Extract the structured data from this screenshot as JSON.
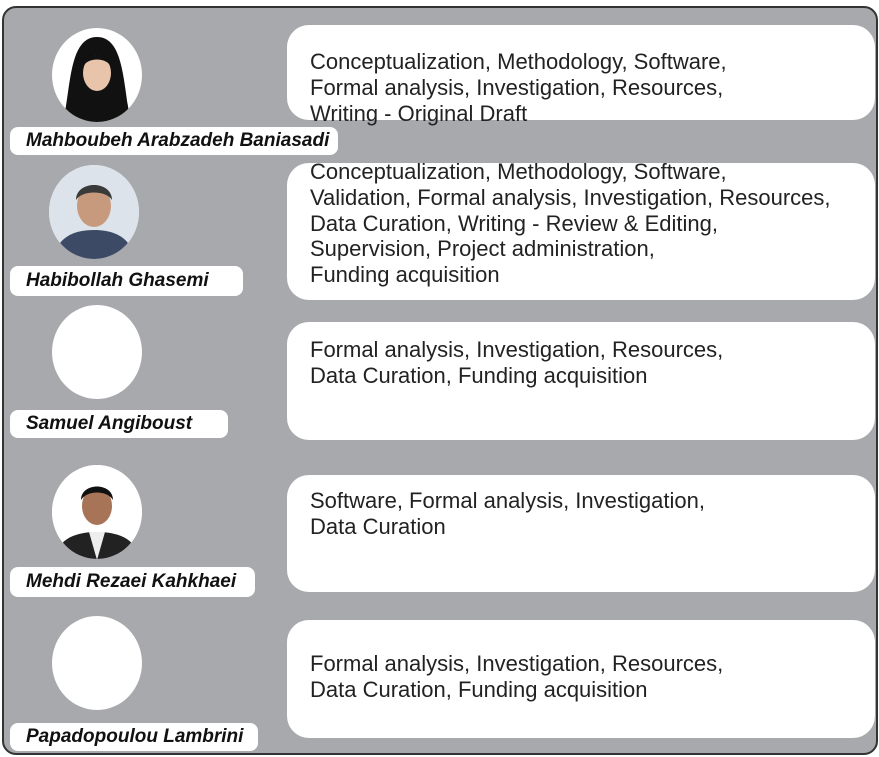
{
  "authors": [
    {
      "name": "Mahboubeh Arabzadeh Baniasadi",
      "contributions": [
        "Conceptualization, Methodology, Software,",
        "Formal analysis, Investigation, Resources,",
        "Writing - Original Draft"
      ]
    },
    {
      "name": "Habibollah Ghasemi",
      "contributions": [
        "Conceptualization, Methodology, Software,",
        "Validation, Formal analysis, Investigation, Resources,",
        "Data Curation, Writing - Review & Editing,",
        "Supervision, Project administration,",
        "Funding acquisition"
      ]
    },
    {
      "name": "Samuel Angiboust",
      "contributions": [
        "Formal analysis, Investigation, Resources,",
        "Data Curation, Funding acquisition"
      ]
    },
    {
      "name": "Mehdi Rezaei Kahkhaei",
      "contributions": [
        "Software, Formal analysis, Investigation,",
        "Data Curation"
      ]
    },
    {
      "name": "Papadopoulou Lambrini",
      "contributions": [
        "Formal analysis, Investigation, Resources,",
        "Data Curation, Funding acquisition"
      ]
    }
  ]
}
